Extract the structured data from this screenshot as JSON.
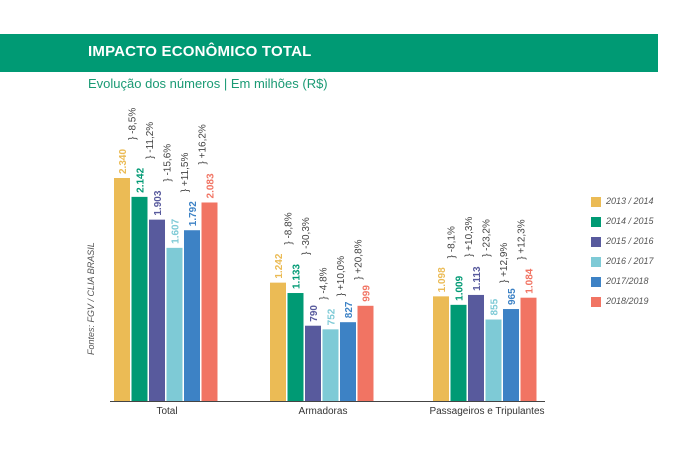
{
  "header": {
    "title": "IMPACTO ECONÔMICO TOTAL",
    "subtitle": "Evolução dos números | Em milhões (R$)"
  },
  "source_note": "Fontes: FGV / CLIA BRASIL",
  "colors": {
    "banner": "#009a74",
    "subtitle": "#1a9a74",
    "series": [
      "#ebbb55",
      "#009a74",
      "#585a9d",
      "#7ecad6",
      "#3d82c5",
      "#f17463"
    ]
  },
  "chart_data": {
    "type": "bar",
    "title": "IMPACTO ECONÔMICO TOTAL",
    "subtitle": "Evolução dos números | Em milhões (R$)",
    "xlabel": "",
    "ylabel": "",
    "ylim": [
      0,
      2600
    ],
    "grid": false,
    "legend_position": "right",
    "categories": [
      "Total",
      "Armadoras",
      "Passageiros e Tripulantes"
    ],
    "series": [
      {
        "name": "2013 / 2014",
        "values": [
          2340,
          1242,
          1098
        ],
        "labels": [
          "2.340",
          "1.242",
          "1.098"
        ]
      },
      {
        "name": "2014 / 2015",
        "values": [
          2142,
          1133,
          1009
        ],
        "labels": [
          "2.142",
          "1.133",
          "1.009"
        ]
      },
      {
        "name": "2015 / 2016",
        "values": [
          1903,
          790,
          1113
        ],
        "labels": [
          "1.903",
          "790",
          "1.113"
        ]
      },
      {
        "name": "2016 / 2017",
        "values": [
          1607,
          752,
          855
        ],
        "labels": [
          "1.607",
          "752",
          "855"
        ]
      },
      {
        "name": "2017/2018",
        "values": [
          1792,
          827,
          965
        ],
        "labels": [
          "1.792",
          "827",
          "965"
        ]
      },
      {
        "name": "2018/2019",
        "values": [
          2083,
          999,
          1084
        ],
        "labels": [
          "2.083",
          "999",
          "1.084"
        ]
      }
    ],
    "annotations": [
      [
        "} -8,5%",
        "} -11,2%",
        "} -15,6%",
        "} +11,5%",
        "} +16,2%"
      ],
      [
        "} -8,8%",
        "} -30,3%",
        "} -4,8%",
        "} +10,0%",
        "} +20,8%"
      ],
      [
        "} -8,1%",
        "} +10,3%",
        "} -23,2%",
        "} +12,9%",
        "} +12,3%"
      ]
    ]
  }
}
